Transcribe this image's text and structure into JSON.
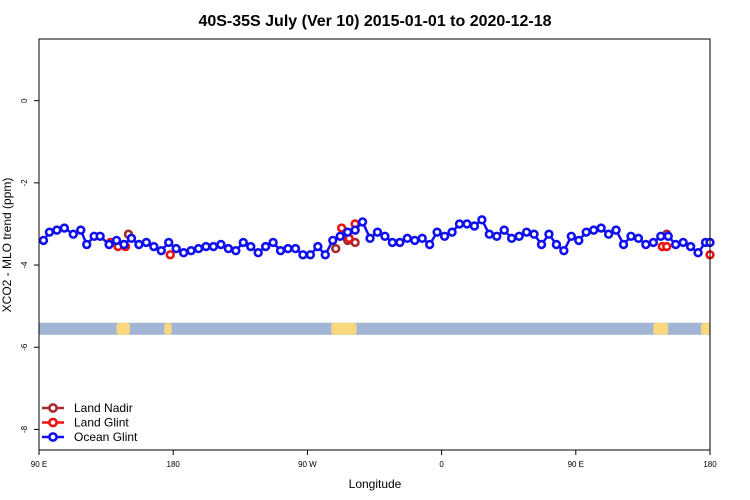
{
  "chart_data": {
    "type": "line",
    "title": "40S-35S July (Ver 10)   2015-01-01 to 2020-12-18",
    "xlabel": "Longitude",
    "ylabel": "XCO2 - MLO trend (ppm)",
    "x_ticks": [
      {
        "value": 0,
        "label": "90 E"
      },
      {
        "value": 90,
        "label": "180"
      },
      {
        "value": 180,
        "label": "90 W"
      },
      {
        "value": 270,
        "label": "0"
      },
      {
        "value": 360,
        "label": "90 E"
      },
      {
        "value": 450,
        "label": "180"
      }
    ],
    "xlim": [
      0,
      450
    ],
    "y_ticks": [
      0,
      -2,
      -4,
      -6,
      -8
    ],
    "ylim": [
      -8.5,
      1.5
    ],
    "grid": false,
    "legend_position": "bottom-left",
    "land_strip": {
      "y": -5.55,
      "ocean_color": "#a2b5d4",
      "land_color": "#f9d77e",
      "land_ranges": [
        [
          52,
          61
        ],
        [
          84,
          89
        ],
        [
          196,
          213
        ],
        [
          412,
          422
        ],
        [
          444,
          450
        ]
      ]
    },
    "series": [
      {
        "name": "Land Nadir",
        "color": "#a32b30",
        "x": [
          48,
          60,
          199,
          207,
          212,
          421
        ],
        "y": [
          -3.45,
          -3.25,
          -3.6,
          -3.4,
          -3.45,
          -3.25
        ]
      },
      {
        "name": "Land Glint",
        "color": "#ee1111",
        "x": [
          48,
          53,
          58,
          88,
          203,
          208,
          212,
          418,
          421,
          450
        ],
        "y": [
          -3.45,
          -3.55,
          -3.55,
          -3.75,
          -3.1,
          -3.35,
          -3.0,
          -3.55,
          -3.55,
          -3.75
        ]
      },
      {
        "name": "Ocean Glint",
        "color": "#1010ee",
        "x": [
          3,
          7,
          12,
          17,
          23,
          28,
          32,
          37,
          41,
          47,
          52,
          57,
          62,
          67,
          72,
          77,
          82,
          87,
          92,
          97,
          102,
          107,
          112,
          117,
          122,
          127,
          132,
          137,
          142,
          147,
          152,
          157,
          162,
          167,
          172,
          177,
          182,
          187,
          192,
          197,
          202,
          207,
          212,
          217,
          222,
          227,
          232,
          237,
          242,
          247,
          252,
          257,
          262,
          267,
          272,
          277,
          282,
          287,
          292,
          297,
          302,
          307,
          312,
          317,
          322,
          327,
          332,
          337,
          342,
          347,
          352,
          357,
          362,
          367,
          372,
          377,
          382,
          387,
          392,
          397,
          402,
          407,
          412,
          417,
          422,
          427,
          432,
          437,
          442,
          447,
          450
        ],
        "y": [
          -3.4,
          -3.2,
          -3.15,
          -3.1,
          -3.25,
          -3.15,
          -3.5,
          -3.3,
          -3.3,
          -3.5,
          -3.4,
          -3.5,
          -3.35,
          -3.5,
          -3.45,
          -3.55,
          -3.65,
          -3.45,
          -3.6,
          -3.7,
          -3.65,
          -3.6,
          -3.55,
          -3.55,
          -3.5,
          -3.6,
          -3.65,
          -3.45,
          -3.55,
          -3.7,
          -3.55,
          -3.45,
          -3.65,
          -3.6,
          -3.6,
          -3.75,
          -3.75,
          -3.55,
          -3.75,
          -3.4,
          -3.3,
          -3.2,
          -3.15,
          -2.95,
          -3.35,
          -3.2,
          -3.3,
          -3.45,
          -3.45,
          -3.35,
          -3.4,
          -3.35,
          -3.5,
          -3.2,
          -3.3,
          -3.2,
          -3.0,
          -3.0,
          -3.05,
          -2.9,
          -3.25,
          -3.3,
          -3.15,
          -3.35,
          -3.3,
          -3.2,
          -3.25,
          -3.5,
          -3.25,
          -3.5,
          -3.65,
          -3.3,
          -3.4,
          -3.2,
          -3.15,
          -3.1,
          -3.25,
          -3.15,
          -3.5,
          -3.3,
          -3.35,
          -3.5,
          -3.45,
          -3.3,
          -3.3,
          -3.5,
          -3.45,
          -3.55,
          -3.7,
          -3.45,
          -3.45
        ]
      }
    ]
  }
}
